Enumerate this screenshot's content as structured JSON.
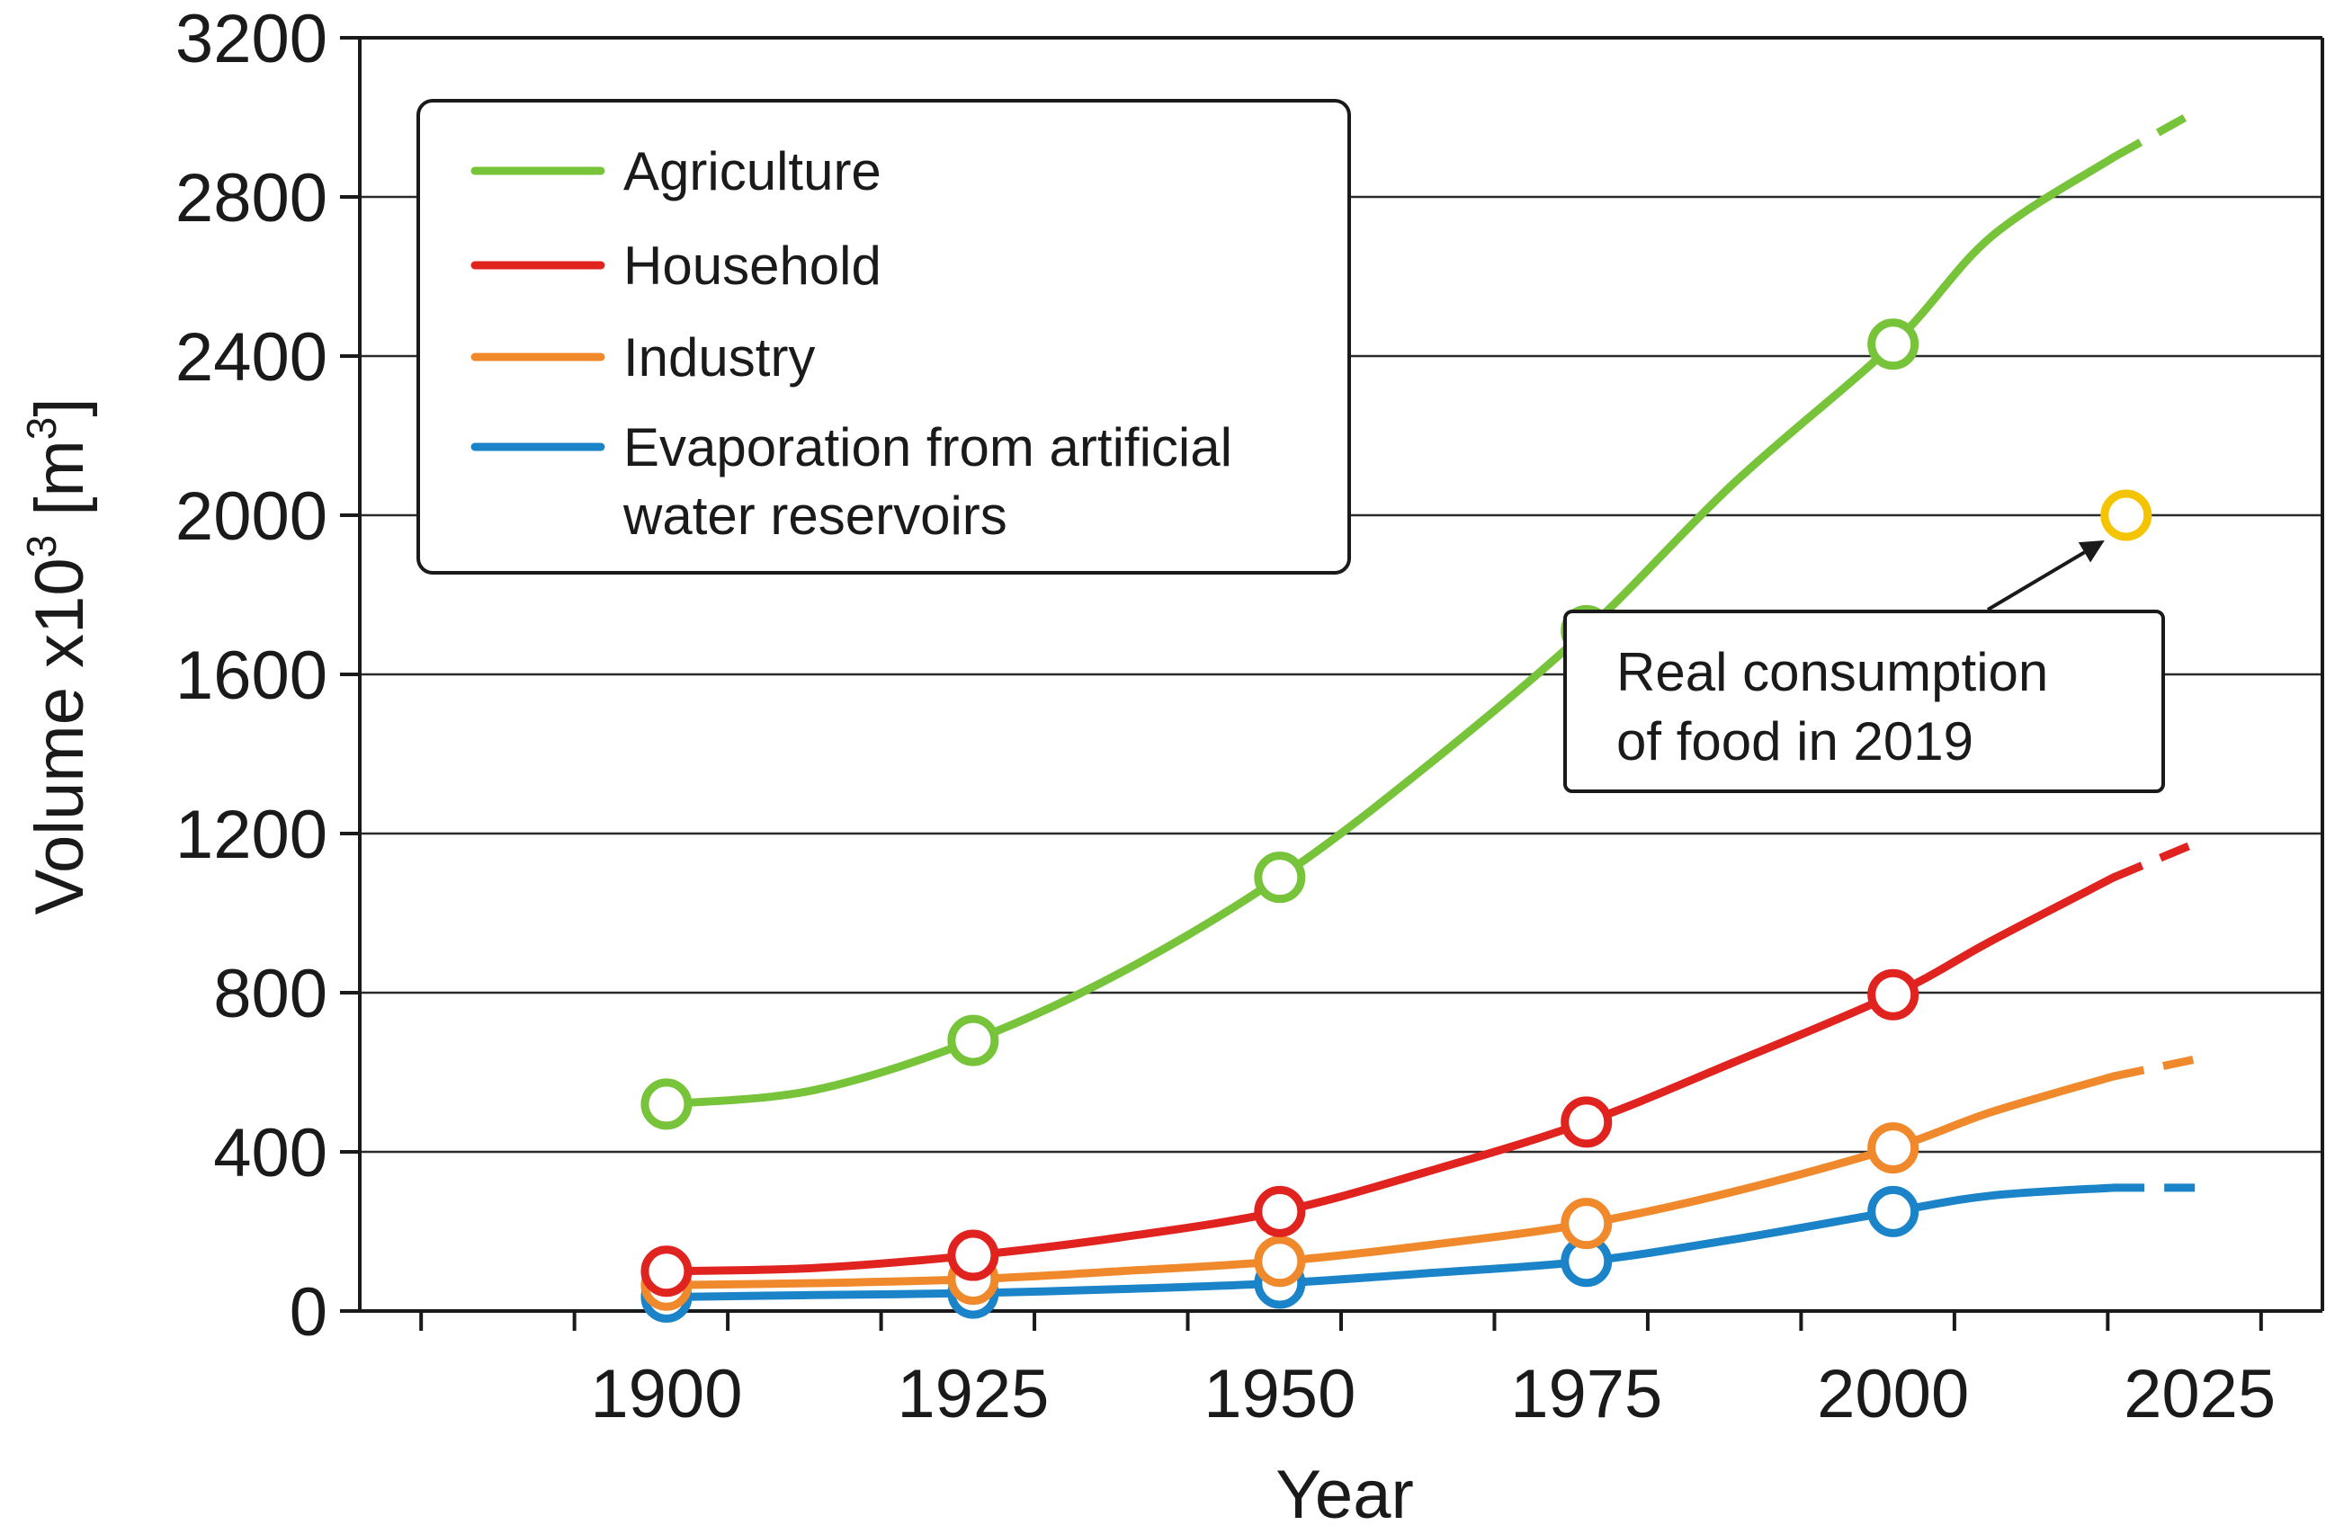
{
  "chart_data": {
    "type": "line",
    "title": "",
    "xlabel": "Year",
    "ylabel": "Volume x10",
    "ylabel_exponent": "3",
    "ylabel_unit_open": " [m",
    "ylabel_unit_exponent": "3",
    "ylabel_unit_close": "]",
    "xlim": [
      1875,
      2035
    ],
    "ylim": [
      0,
      3200
    ],
    "x_ticks": [
      1900,
      1925,
      1950,
      1975,
      2000,
      2025
    ],
    "y_ticks": [
      0,
      400,
      800,
      1200,
      1600,
      2000,
      2400,
      2800,
      3200
    ],
    "grid": "horizontal",
    "legend_position": "top-left",
    "series": [
      {
        "name": "Agriculture",
        "color": "#77c43a",
        "marker_x": [
          1900,
          1925,
          1950,
          1975,
          2000
        ],
        "marker_y": [
          520,
          680,
          1090,
          1710,
          2430
        ],
        "x": [
          1900,
          1912,
          1925,
          1937,
          1950,
          1962,
          1975,
          1987,
          2000,
          2008,
          2018
        ],
        "y": [
          520,
          555,
          680,
          850,
          1090,
          1370,
          1710,
          2080,
          2430,
          2700,
          2900
        ],
        "projected_x": [
          2018,
          2025
        ],
        "projected_y": [
          2900,
          3020
        ]
      },
      {
        "name": "Household",
        "color": "#e0231f",
        "marker_x": [
          1900,
          1925,
          1950,
          1975,
          2000
        ],
        "marker_y": [
          100,
          140,
          250,
          475,
          795
        ],
        "x": [
          1900,
          1912,
          1925,
          1937,
          1950,
          1962,
          1975,
          1987,
          2000,
          2008,
          2018
        ],
        "y": [
          100,
          108,
          140,
          185,
          250,
          350,
          475,
          625,
          795,
          930,
          1090
        ],
        "projected_x": [
          2018,
          2025
        ],
        "projected_y": [
          1090,
          1180
        ]
      },
      {
        "name": "Industry",
        "color": "#f0892b",
        "marker_x": [
          1900,
          1925,
          1950,
          1975,
          2000
        ],
        "marker_y": [
          65,
          80,
          125,
          220,
          410
        ],
        "x": [
          1900,
          1912,
          1925,
          1937,
          1950,
          1962,
          1975,
          1987,
          2000,
          2008,
          2018
        ],
        "y": [
          65,
          70,
          80,
          100,
          125,
          165,
          220,
          300,
          410,
          500,
          590
        ],
        "projected_x": [
          2018,
          2025
        ],
        "projected_y": [
          590,
          635
        ]
      },
      {
        "name": "Evaporation from artificial water reservoirs",
        "legend_lines": [
          "Evaporation from artificial",
          "water reservoirs"
        ],
        "color": "#1b84c8",
        "marker_x": [
          1900,
          1925,
          1950,
          1975,
          2000
        ],
        "marker_y": [
          35,
          45,
          70,
          125,
          250
        ],
        "x": [
          1900,
          1912,
          1925,
          1937,
          1950,
          1962,
          1975,
          1987,
          2000,
          2008,
          2018
        ],
        "y": [
          35,
          40,
          45,
          55,
          70,
          95,
          125,
          180,
          250,
          290,
          310
        ],
        "projected_x": [
          2018,
          2025
        ],
        "projected_y": [
          310,
          310
        ]
      }
    ],
    "annotation": {
      "lines": [
        "Real consumption",
        "of food in 2019"
      ],
      "point_x": 2019,
      "point_y": 2000,
      "point_color": "#f5c400"
    }
  }
}
